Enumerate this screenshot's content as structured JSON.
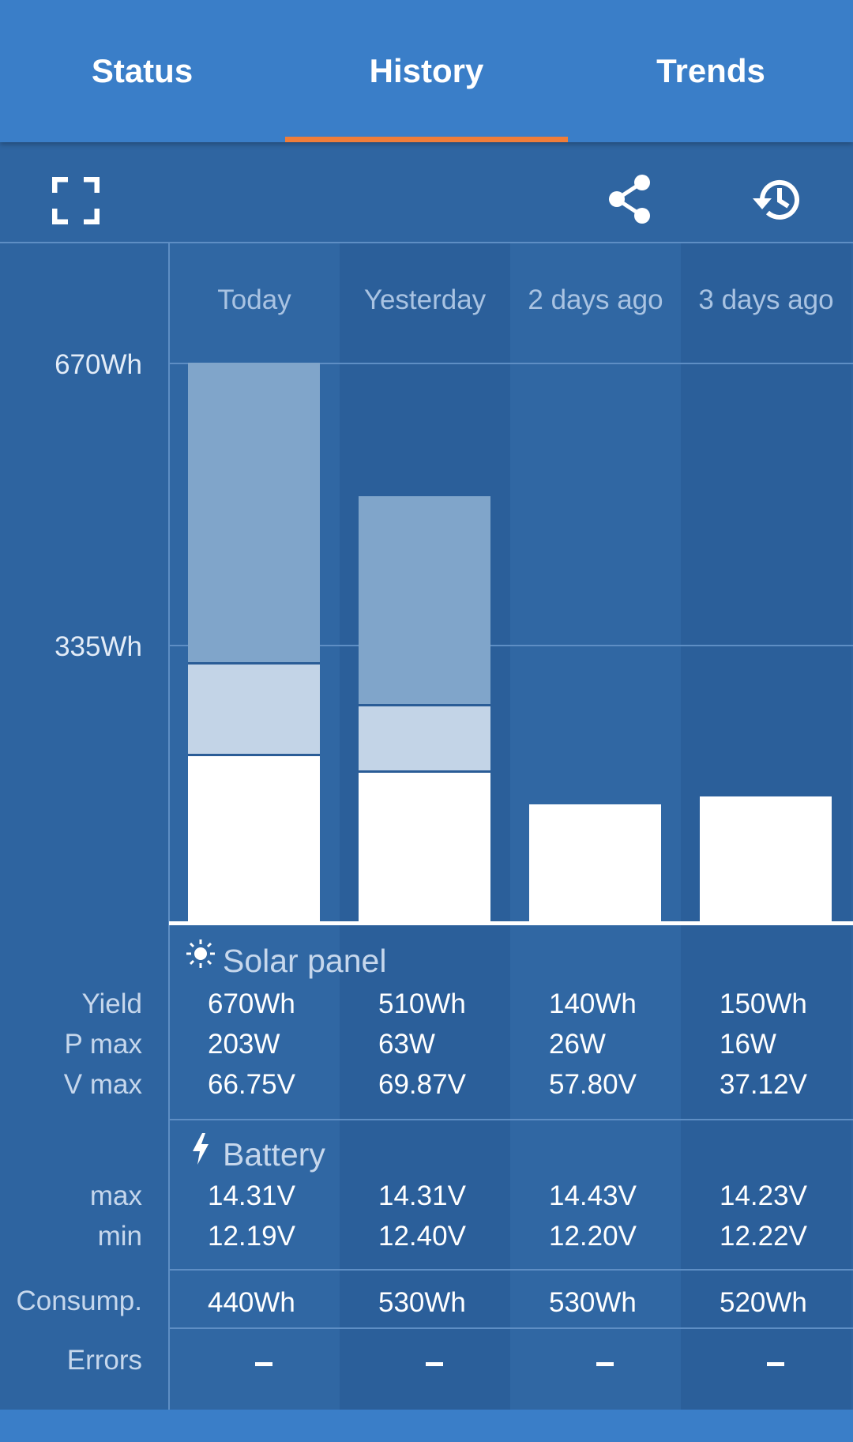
{
  "tabs": [
    {
      "label": "Status"
    },
    {
      "label": "History"
    },
    {
      "label": "Trends"
    }
  ],
  "active_tab": "History",
  "toolbar": {
    "icons": [
      "fullscreen-icon",
      "share-icon",
      "history-icon"
    ]
  },
  "colors": {
    "header": "#3a7ec8",
    "background": "#2e64a0",
    "accent": "#ef7d3a",
    "bar_base": "#ffffff",
    "bar_mid": "#c3d4e7",
    "bar_top": "#80a5ca"
  },
  "columns": [
    "Today",
    "Yesterday",
    "2 days ago",
    "3 days ago"
  ],
  "chart_data": {
    "type": "bar",
    "stacked": true,
    "categories": [
      "Today",
      "Yesterday",
      "2 days ago",
      "3 days ago"
    ],
    "y_ticks": [
      "670Wh",
      "335Wh"
    ],
    "ylim": [
      0,
      670
    ],
    "unit": "Wh",
    "series": [
      {
        "values": [
          200,
          180,
          140,
          150
        ]
      },
      {
        "values": [
          110,
          80,
          0,
          0
        ]
      },
      {
        "values": [
          360,
          250,
          0,
          0
        ]
      }
    ]
  },
  "solar": {
    "title": "Solar panel",
    "icon": "sun-icon",
    "rows": [
      {
        "label": "Yield",
        "values": [
          "670Wh",
          "510Wh",
          "140Wh",
          "150Wh"
        ]
      },
      {
        "label": "P max",
        "values": [
          "203W",
          "63W",
          "26W",
          "16W"
        ]
      },
      {
        "label": "V max",
        "values": [
          "66.75V",
          "69.87V",
          "57.80V",
          "37.12V"
        ]
      }
    ]
  },
  "battery": {
    "title": "Battery",
    "icon": "lightning-icon",
    "rows": [
      {
        "label": "max",
        "values": [
          "14.31V",
          "14.31V",
          "14.43V",
          "14.23V"
        ]
      },
      {
        "label": "min",
        "values": [
          "12.19V",
          "12.40V",
          "12.20V",
          "12.22V"
        ]
      }
    ]
  },
  "consumption": {
    "label": "Consump.",
    "values": [
      "440Wh",
      "530Wh",
      "530Wh",
      "520Wh"
    ]
  },
  "errors": {
    "label": "Errors",
    "values": [
      "–",
      "–",
      "–",
      "–"
    ]
  }
}
